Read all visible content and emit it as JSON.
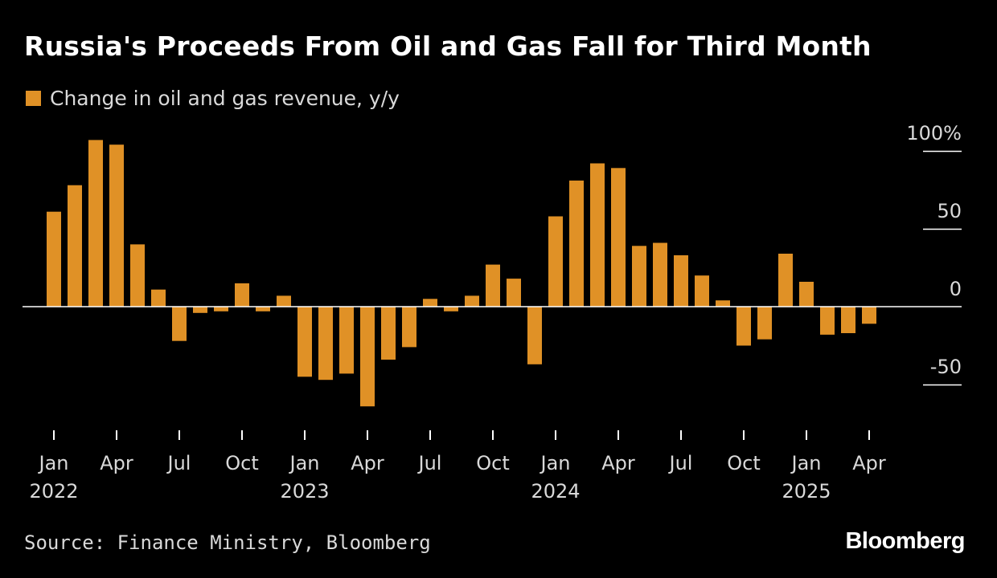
{
  "colors": {
    "background": "#000000",
    "bar": "#e09126",
    "text": "#ffffff",
    "muted_text": "#d9d9d9",
    "axis": "#ffffff"
  },
  "footer": {
    "source": "Source: Finance Ministry, Bloomberg",
    "brand": "Bloomberg"
  },
  "chart_data": {
    "type": "bar",
    "title": "Russia's Proceeds From Oil and Gas Fall for Third Month",
    "legend": [
      "Change in oil and gas revenue, y/y"
    ],
    "legend_position": "top-left",
    "ylim": [
      -80,
      100
    ],
    "yticks": [
      {
        "value": 100,
        "label": "100%"
      },
      {
        "value": 50,
        "label": "50"
      },
      {
        "value": 0,
        "label": "0"
      },
      {
        "value": -50,
        "label": "-50"
      }
    ],
    "y_axis_side": "right",
    "grid": false,
    "categories": [
      "2022-01",
      "2022-02",
      "2022-03",
      "2022-04",
      "2022-05",
      "2022-06",
      "2022-07",
      "2022-08",
      "2022-09",
      "2022-10",
      "2022-11",
      "2022-12",
      "2023-01",
      "2023-02",
      "2023-03",
      "2023-04",
      "2023-05",
      "2023-06",
      "2023-07",
      "2023-08",
      "2023-09",
      "2023-10",
      "2023-11",
      "2023-12",
      "2024-01",
      "2024-02",
      "2024-03",
      "2024-04",
      "2024-05",
      "2024-06",
      "2024-07",
      "2024-08",
      "2024-09",
      "2024-10",
      "2024-11",
      "2024-12",
      "2025-01",
      "2025-02",
      "2025-03",
      "2025-04"
    ],
    "series": [
      {
        "name": "Change in oil and gas revenue, y/y",
        "values": [
          61,
          78,
          107,
          104,
          40,
          11,
          -22,
          -4,
          -3,
          15,
          -3,
          7,
          -45,
          -47,
          -43,
          -64,
          -34,
          -26,
          5,
          -3,
          7,
          27,
          18,
          -37,
          58,
          81,
          92,
          89,
          39,
          41,
          33,
          20,
          4,
          -25,
          -21,
          34,
          16,
          -18,
          -17,
          -11
        ]
      }
    ],
    "x_tick_labels": [
      {
        "index": 0,
        "month": "Jan",
        "year": "2022"
      },
      {
        "index": 3,
        "month": "Apr",
        "year": ""
      },
      {
        "index": 6,
        "month": "Jul",
        "year": ""
      },
      {
        "index": 9,
        "month": "Oct",
        "year": ""
      },
      {
        "index": 12,
        "month": "Jan",
        "year": "2023"
      },
      {
        "index": 15,
        "month": "Apr",
        "year": ""
      },
      {
        "index": 18,
        "month": "Jul",
        "year": ""
      },
      {
        "index": 21,
        "month": "Oct",
        "year": ""
      },
      {
        "index": 24,
        "month": "Jan",
        "year": "2024"
      },
      {
        "index": 27,
        "month": "Apr",
        "year": ""
      },
      {
        "index": 30,
        "month": "Jul",
        "year": ""
      },
      {
        "index": 33,
        "month": "Oct",
        "year": ""
      },
      {
        "index": 36,
        "month": "Jan",
        "year": "2025"
      },
      {
        "index": 39,
        "month": "Apr",
        "year": ""
      }
    ]
  }
}
